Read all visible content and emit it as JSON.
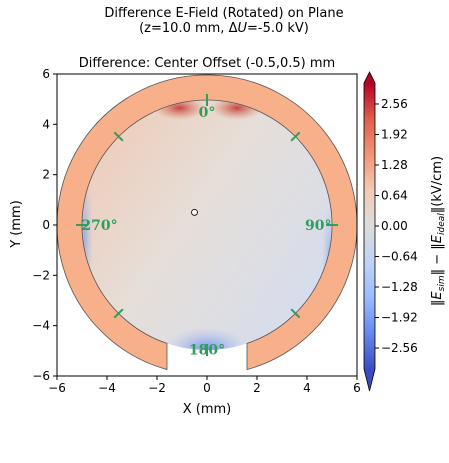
{
  "chart_data": {
    "type": "heatmap",
    "title": "Difference E-Field (Rotated) on Plane",
    "subtitle": "(z=10.0 mm, ΔU=-5.0 kV)",
    "plot_title": "Difference: Center Offset (-0.5,0.5) mm",
    "xlabel": "X (mm)",
    "ylabel": "Y (mm)",
    "xlim": [
      -6,
      6
    ],
    "ylim": [
      -6,
      6
    ],
    "x_ticks": [
      -6,
      -4,
      -2,
      0,
      2,
      4,
      6
    ],
    "y_ticks": [
      -6,
      -4,
      -2,
      0,
      2,
      4,
      6
    ],
    "x_tick_labels": [
      "−6",
      "−4",
      "−2",
      "0",
      "2",
      "4",
      "6"
    ],
    "y_tick_labels": [
      "−6",
      "−4",
      "−2",
      "0",
      "2",
      "4",
      "6"
    ],
    "colorbar": {
      "label": "‖E⃗_sim‖ − ‖E⃗_ideal‖(kV/cm)",
      "colormap": "coolwarm",
      "range": [
        -3.0,
        3.0
      ],
      "ticks": [
        2.56,
        1.92,
        1.28,
        0.64,
        0.0,
        -0.64,
        -1.28,
        -1.92,
        -2.56
      ],
      "tick_labels": [
        "2.56",
        "1.92",
        "1.28",
        "0.64",
        "0.00",
        "−0.64",
        "−1.28",
        "−1.92",
        "−2.56"
      ],
      "extend": "both"
    },
    "electrode": {
      "inner_radius": 5.0,
      "outer_radius": 6.0,
      "gap_center_deg": 180,
      "gap_half_width": 1.6,
      "color": "#f7b08a"
    },
    "center_marker": [
      -0.5,
      0.5
    ],
    "angle_labels": [
      "0°",
      "90°",
      "180°",
      "270°"
    ],
    "angle_marker_degrees": [
      0,
      45,
      90,
      135,
      180,
      225,
      270,
      315
    ],
    "field_values": {
      "interior_typical": 0.0,
      "top_hotspot_left": 2.6,
      "top_hotspot_right": 2.6,
      "bottom_gap_region": -2.6,
      "left_edge_fringe": -1.5,
      "right_edge_fringe": -1.3
    },
    "colors": {
      "angle_marker": "#2e9e5b",
      "electrode": "#f7b08a",
      "interior_base": "#e4e1de",
      "warm_region": "#f0c8b2",
      "cool_region": "#d6dded"
    }
  }
}
